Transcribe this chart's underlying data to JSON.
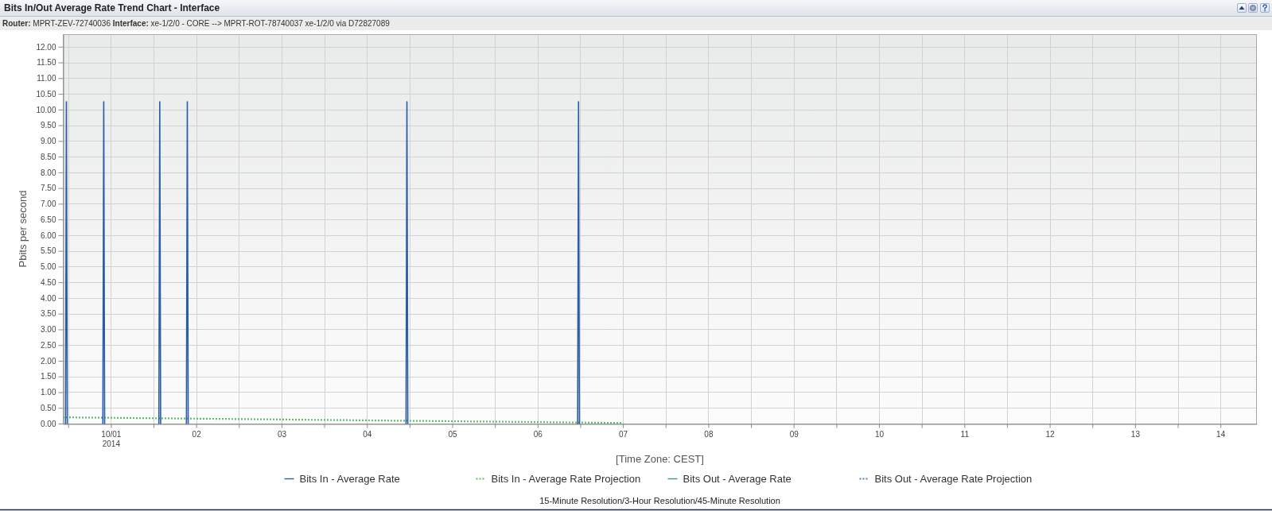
{
  "chart_data": {
    "type": "line",
    "title": "Bits In/Out Average Rate Trend Chart - Interface",
    "subtitle": "Router: MPRT-ZEV-72740036 Interface: xe-1/2/0 - CORE --> MPRT-ROT-78740037 xe-1/2/0 via D72827089",
    "xlabel": "[Time Zone: CEST]",
    "ylabel": "Pbits per second",
    "annotations": [
      "15-Minute Resolution/3-Hour Resolution/45-Minute Resolution"
    ],
    "xlim": [
      "2014-09-30T10:30",
      "2014-10-14T10:15"
    ],
    "xticks": [
      {
        "value": "2014-09-30T12:00",
        "label": null
      },
      {
        "value": "2014-10-01T00:00",
        "label": "10/01\n2014"
      },
      {
        "value": "2014-10-01T12:00",
        "label": null
      },
      {
        "value": "2014-10-02T00:00",
        "label": "02"
      },
      {
        "value": "2014-10-02T12:00",
        "label": null
      },
      {
        "value": "2014-10-03T00:00",
        "label": "03"
      },
      {
        "value": "2014-10-03T12:00",
        "label": null
      },
      {
        "value": "2014-10-04T00:00",
        "label": "04"
      },
      {
        "value": "2014-10-04T12:00",
        "label": null
      },
      {
        "value": "2014-10-05T00:00",
        "label": "05"
      },
      {
        "value": "2014-10-05T12:00",
        "label": null
      },
      {
        "value": "2014-10-06T00:00",
        "label": "06"
      },
      {
        "value": "2014-10-06T12:00",
        "label": null
      },
      {
        "value": "2014-10-07T00:00",
        "label": "07"
      },
      {
        "value": "2014-10-07T12:00",
        "label": null
      },
      {
        "value": "2014-10-08T00:00",
        "label": "08"
      },
      {
        "value": "2014-10-08T12:00",
        "label": null
      },
      {
        "value": "2014-10-09T00:00",
        "label": "09"
      },
      {
        "value": "2014-10-09T12:00",
        "label": null
      },
      {
        "value": "2014-10-10T00:00",
        "label": "10"
      },
      {
        "value": "2014-10-10T12:00",
        "label": null
      },
      {
        "value": "2014-10-11T00:00",
        "label": "11"
      },
      {
        "value": "2014-10-11T12:00",
        "label": null
      },
      {
        "value": "2014-10-12T00:00",
        "label": "12"
      },
      {
        "value": "2014-10-12T12:00",
        "label": null
      },
      {
        "value": "2014-10-13T00:00",
        "label": "13"
      },
      {
        "value": "2014-10-13T12:00",
        "label": null
      },
      {
        "value": "2014-10-14T00:00",
        "label": "14"
      }
    ],
    "ylim": [
      0,
      12.4
    ],
    "yticks": [
      {
        "value": 0,
        "label": "0.00"
      },
      {
        "value": 0.5,
        "label": "0.50"
      },
      {
        "value": 1,
        "label": "1.00"
      },
      {
        "value": 1.5,
        "label": "1.50"
      },
      {
        "value": 2,
        "label": "2.00"
      },
      {
        "value": 2.5,
        "label": "2.50"
      },
      {
        "value": 3,
        "label": "3.00"
      },
      {
        "value": 3.5,
        "label": "3.50"
      },
      {
        "value": 4,
        "label": "4.00"
      },
      {
        "value": 4.5,
        "label": "4.50"
      },
      {
        "value": 5,
        "label": "5.00"
      },
      {
        "value": 5.5,
        "label": "5.50"
      },
      {
        "value": 6,
        "label": "6.00"
      },
      {
        "value": 6.5,
        "label": "6.50"
      },
      {
        "value": 7,
        "label": "7.00"
      },
      {
        "value": 7.5,
        "label": "7.50"
      },
      {
        "value": 8,
        "label": "8.00"
      },
      {
        "value": 8.5,
        "label": "8.50"
      },
      {
        "value": 9,
        "label": "9.00"
      },
      {
        "value": 9.5,
        "label": "9.50"
      },
      {
        "value": 10,
        "label": "10.00"
      },
      {
        "value": 10.5,
        "label": "10.50"
      },
      {
        "value": 11,
        "label": "11.00"
      },
      {
        "value": 11.5,
        "label": "11.50"
      },
      {
        "value": 12,
        "label": "12.00"
      }
    ],
    "grid": true,
    "legend": "bottom",
    "marker": "none",
    "series": [
      {
        "name": "Bits In - Average Rate",
        "color": "#2a5ca8",
        "line_style": "solid",
        "x": [
          "2014-09-30T11:15",
          "2014-09-30T11:30",
          "2014-09-30T11:45",
          "2014-09-30T12:00",
          "2014-09-30T21:45",
          "2014-09-30T22:00",
          "2014-09-30T22:15",
          "2014-09-30T22:30",
          "2014-10-01T13:30",
          "2014-10-01T13:45",
          "2014-10-01T14:00",
          "2014-10-01T14:15",
          "2014-10-01T21:15",
          "2014-10-01T21:30",
          "2014-10-01T21:45",
          "2014-10-01T22:00",
          "2014-10-04T11:00",
          "2014-10-04T11:15",
          "2014-10-04T11:30",
          "2014-10-04T11:45",
          "2014-10-06T11:15",
          "2014-10-06T11:30",
          "2014-10-06T11:45"
        ],
        "values": [
          0,
          10.25,
          0,
          null,
          0,
          10.25,
          0,
          null,
          0,
          10.25,
          0,
          null,
          0,
          10.25,
          0,
          null,
          0,
          10.25,
          0,
          null,
          0,
          10.25,
          0
        ]
      },
      {
        "name": "Bits In - Average Rate Projection",
        "color": "#5cbf6a",
        "line_style": "dotted",
        "x": [
          "2014-09-30T10:30",
          "2014-10-07T00:00"
        ],
        "values": [
          0.2,
          0.02
        ]
      },
      {
        "name": "Bits Out - Average Rate",
        "color": "#3a9a82",
        "line_style": "solid"
      },
      {
        "name": "Bits Out - Average Rate Projection",
        "color": "#4a7fd0",
        "line_style": "dotted"
      }
    ]
  }
}
